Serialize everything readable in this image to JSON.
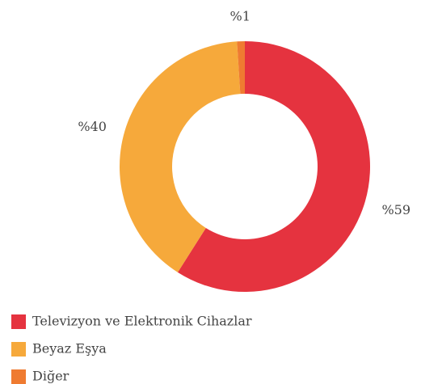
{
  "chart_data": {
    "type": "donut",
    "categories": [
      "Televizyon ve Elektronik Cihazlar",
      "Beyaz Eşya",
      "Diğer"
    ],
    "values": [
      59,
      40,
      1
    ],
    "value_labels": [
      "%59",
      "%40",
      "%1"
    ],
    "colors": [
      "#e5333f",
      "#f6a93b",
      "#ef7b31"
    ],
    "legend": "bottom-left"
  }
}
